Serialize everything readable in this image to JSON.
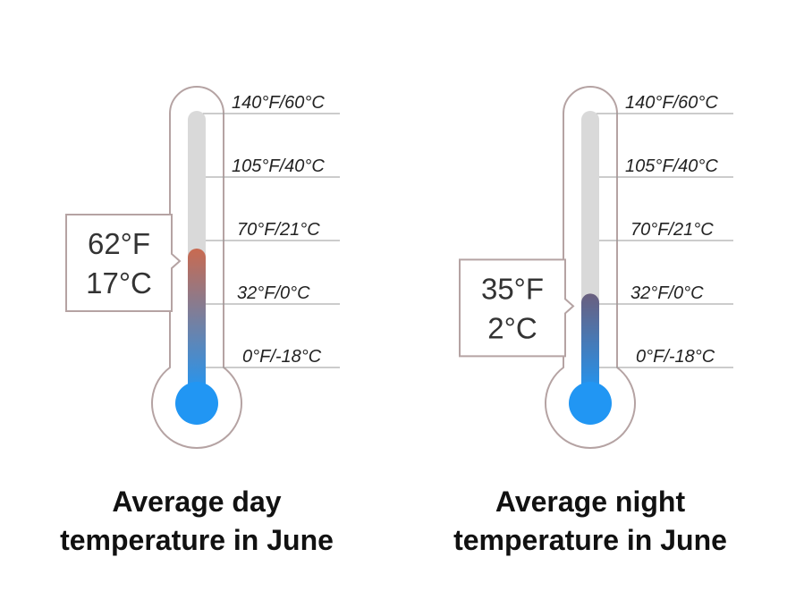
{
  "scale": {
    "ticks": [
      {
        "label": "140°F/60°C",
        "f": 140
      },
      {
        "label": "105°F/40°C",
        "f": 105
      },
      {
        "label": "70°F/21°C",
        "f": 70
      },
      {
        "label": "32°F/0°C",
        "f": 32
      },
      {
        "label": "0°F/-18°C",
        "f": 0
      }
    ]
  },
  "thermometers": [
    {
      "reading_f": "62°F",
      "reading_c": "17°C",
      "value_f": 62,
      "caption_line1": "Average day",
      "caption_line2": "temperature in June",
      "fill_top_color": "#c96a50",
      "fill_bottom_color": "#2196f3"
    },
    {
      "reading_f": "35°F",
      "reading_c": "2°C",
      "value_f": 35,
      "caption_line1": "Average night",
      "caption_line2": "temperature in June",
      "fill_top_color": "#6a5f7e",
      "fill_bottom_color": "#2196f3"
    }
  ],
  "colors": {
    "outline": "#b5a3a3",
    "tube_empty": "#d9d9d9",
    "bulb": "#2196f3",
    "gridline": "#999999"
  }
}
